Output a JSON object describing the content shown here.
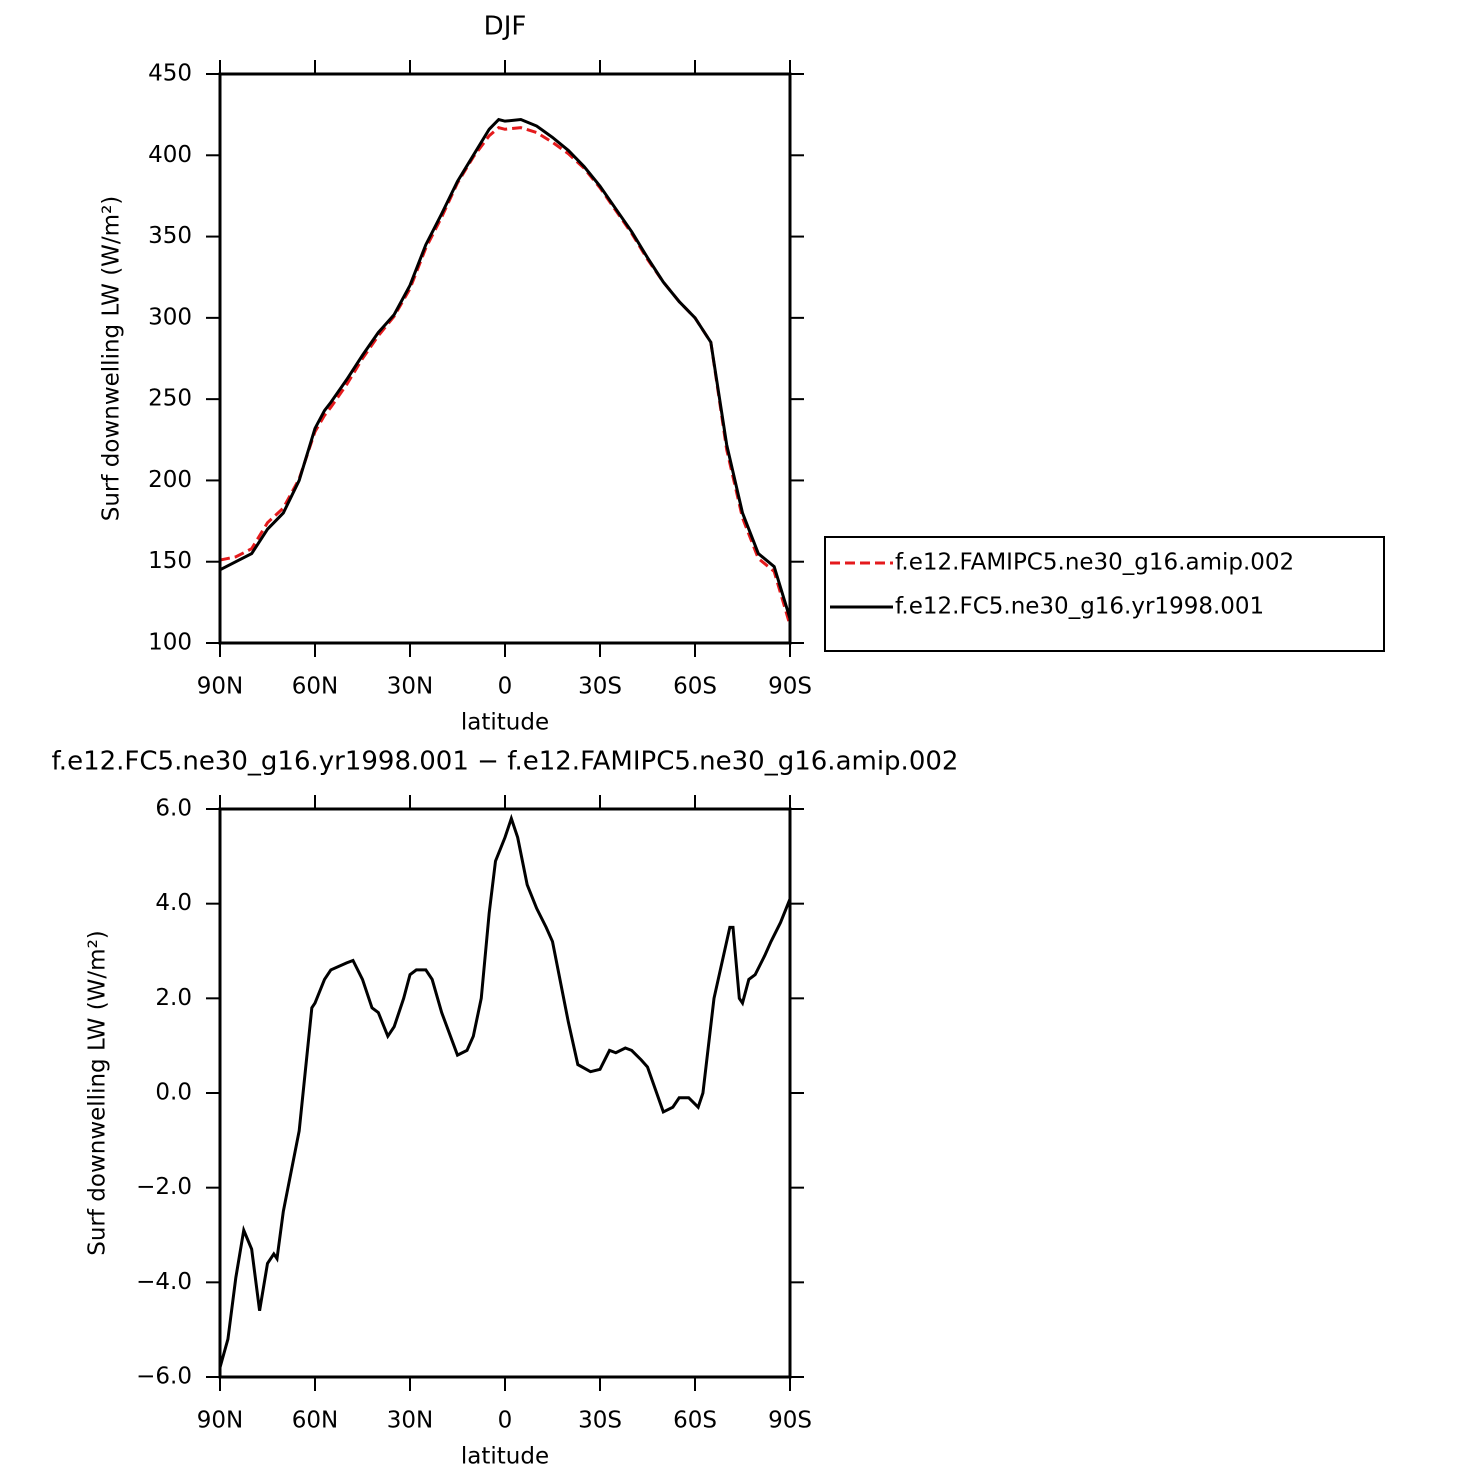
{
  "chart_data": [
    {
      "type": "line",
      "title": "DJF",
      "ylabel": "Surf downwelling LW (W/m²)",
      "xlabel": "latitude",
      "x": [
        90,
        85,
        80,
        75,
        70,
        65,
        60,
        57,
        55,
        50,
        45,
        40,
        35,
        30,
        25,
        20,
        15,
        10,
        5,
        2,
        0,
        -5,
        -10,
        -15,
        -20,
        -25,
        -30,
        -35,
        -40,
        -45,
        -50,
        -55,
        -60,
        -65,
        -70,
        -75,
        -80,
        -85,
        -90
      ],
      "series": [
        {
          "name": "f.e12.FAMIPC5.ne30_g16.amip.002",
          "color": "#e41a1c",
          "dashed": true,
          "values": [
            151,
            153,
            158,
            174,
            183,
            201,
            230,
            240,
            245,
            259,
            275,
            289,
            301,
            318,
            343,
            362,
            383,
            399,
            412,
            417,
            416,
            417,
            414,
            408,
            401,
            392,
            380,
            366,
            352,
            336,
            322,
            310,
            300,
            285,
            219,
            177,
            152,
            144,
            111
          ]
        },
        {
          "name": "f.e12.FC5.ne30_g16.yr1998.001",
          "color": "#000000",
          "dashed": false,
          "values": [
            145,
            150,
            155,
            170,
            180,
            200,
            232,
            243,
            248,
            262,
            277,
            291,
            302,
            320,
            345,
            364,
            384,
            400,
            416,
            422,
            421,
            422,
            418,
            411,
            403,
            393,
            381,
            367,
            353,
            337,
            322,
            310,
            300,
            285,
            222,
            180,
            155,
            147,
            115
          ]
        }
      ],
      "xlim": [
        90,
        -90
      ],
      "xticks": [
        {
          "value": 90,
          "label": "90N"
        },
        {
          "value": 60,
          "label": "60N"
        },
        {
          "value": 30,
          "label": "30N"
        },
        0,
        {
          "value": -30,
          "label": "30S"
        },
        {
          "value": -60,
          "label": "60S"
        },
        {
          "value": -90,
          "label": "90S"
        }
      ],
      "ylim": [
        100,
        450
      ],
      "yticks": [
        100,
        150,
        200,
        250,
        300,
        350,
        400,
        450
      ],
      "legend": "outside-right"
    },
    {
      "type": "line",
      "title": "f.e12.FC5.ne30_g16.yr1998.001 − f.e12.FAMIPC5.ne30_g16.amip.002",
      "ylabel": "Surf downwelling LW (W/m²)",
      "xlabel": "latitude",
      "x": [
        90,
        87.5,
        85,
        82.5,
        80,
        77.5,
        75,
        73,
        72,
        70,
        65,
        61,
        60,
        57,
        55,
        50,
        48,
        45,
        42,
        40,
        37,
        35,
        32,
        30,
        28,
        25,
        23,
        20,
        15,
        12,
        10,
        7.5,
        5,
        3,
        0,
        -2,
        -4,
        -7,
        -10,
        -13,
        -15,
        -20,
        -23,
        -27,
        -30,
        -33,
        -35,
        -38,
        -40,
        -43,
        -45,
        -50,
        -53,
        -55,
        -58,
        -61,
        -62.5,
        -66,
        -68,
        -71,
        -72,
        -74,
        -75,
        -77,
        -79,
        -82,
        -84,
        -87,
        -90
      ],
      "color": "#000000",
      "values": [
        -5.8,
        -5.2,
        -3.9,
        -2.9,
        -3.3,
        -4.6,
        -3.6,
        -3.4,
        -3.5,
        -2.5,
        -0.8,
        1.8,
        1.9,
        2.4,
        2.6,
        2.75,
        2.8,
        2.4,
        1.8,
        1.7,
        1.2,
        1.4,
        2.0,
        2.5,
        2.6,
        2.6,
        2.4,
        1.7,
        0.8,
        0.9,
        1.2,
        2.0,
        3.8,
        4.9,
        5.4,
        5.8,
        5.4,
        4.4,
        3.9,
        3.5,
        3.2,
        1.5,
        0.6,
        0.45,
        0.5,
        0.9,
        0.85,
        0.95,
        0.9,
        0.7,
        0.55,
        -0.4,
        -0.3,
        -0.1,
        -0.1,
        -0.3,
        0.0,
        2.0,
        2.6,
        3.5,
        3.5,
        2.0,
        1.9,
        2.4,
        2.5,
        2.9,
        3.2,
        3.6,
        4.1
      ],
      "xlim": [
        90,
        -90
      ],
      "xticks": [
        {
          "value": 90,
          "label": "90N"
        },
        {
          "value": 60,
          "label": "60N"
        },
        {
          "value": 30,
          "label": "30N"
        },
        0,
        {
          "value": -30,
          "label": "30S"
        },
        {
          "value": -60,
          "label": "60S"
        },
        {
          "value": -90,
          "label": "90S"
        }
      ],
      "ylim": [
        -6,
        6
      ],
      "yticks": [
        {
          "value": -6,
          "label": "−6.0"
        },
        {
          "value": -4,
          "label": "−4.0"
        },
        {
          "value": -2,
          "label": "−2.0"
        },
        {
          "value": 0,
          "label": "0.0"
        },
        {
          "value": 2,
          "label": "2.0"
        },
        {
          "value": 4,
          "label": "4.0"
        },
        {
          "value": 6,
          "label": "6.0"
        }
      ]
    }
  ]
}
